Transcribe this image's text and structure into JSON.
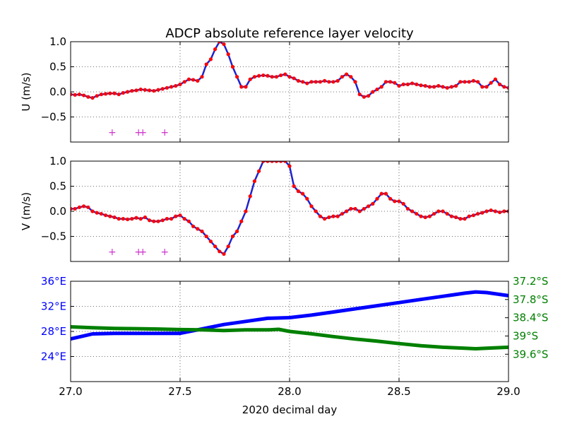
{
  "chart_data": [
    {
      "type": "line",
      "title": "ADCP absolute reference layer velocity",
      "xlabel": "",
      "ylabel": "U (m/s)",
      "xlim": [
        27.0,
        29.0
      ],
      "ylim": [
        -1.0,
        1.0
      ],
      "xticks": [
        27.0,
        27.5,
        28.0,
        28.5,
        29.0
      ],
      "yticks": [
        1.0,
        0.5,
        0.0,
        -0.5
      ],
      "ytick_labels": [
        "1.0",
        "0.5",
        "0.0",
        "−0.5"
      ],
      "grid": true,
      "series": [
        {
          "color": "#ff0000",
          "marker": "dot",
          "x": [
            27.0,
            27.02,
            27.04,
            27.06,
            27.08,
            27.1,
            27.12,
            27.14,
            27.16,
            27.18,
            27.2,
            27.22,
            27.24,
            27.26,
            27.28,
            27.3,
            27.32,
            27.34,
            27.36,
            27.38,
            27.4,
            27.42,
            27.44,
            27.46,
            27.48,
            27.5,
            27.52,
            27.54,
            27.56,
            27.58,
            27.6,
            27.62,
            27.64,
            27.66,
            27.68,
            27.7,
            27.72,
            27.74,
            27.76,
            27.78,
            27.8,
            27.82,
            27.84,
            27.86,
            27.88,
            27.9,
            27.92,
            27.94,
            27.96,
            27.98,
            28.0,
            28.02,
            28.04,
            28.06,
            28.08,
            28.1,
            28.12,
            28.14,
            28.16,
            28.18,
            28.2,
            28.22,
            28.24,
            28.26,
            28.28,
            28.3,
            28.32,
            28.34,
            28.36,
            28.38,
            28.4,
            28.42,
            28.44,
            28.46,
            28.48,
            28.5,
            28.52,
            28.54,
            28.56,
            28.58,
            28.6,
            28.62,
            28.64,
            28.66,
            28.68,
            28.7,
            28.72,
            28.74,
            28.76,
            28.78,
            28.8,
            28.82,
            28.84,
            28.86,
            28.88,
            28.9,
            28.92,
            28.94,
            28.96,
            28.98,
            29.0
          ],
          "y": [
            -0.05,
            -0.06,
            -0.05,
            -0.07,
            -0.1,
            -0.12,
            -0.08,
            -0.05,
            -0.04,
            -0.03,
            -0.03,
            -0.05,
            -0.02,
            0.0,
            0.02,
            0.03,
            0.05,
            0.04,
            0.03,
            0.02,
            0.04,
            0.06,
            0.08,
            0.1,
            0.12,
            0.15,
            0.2,
            0.25,
            0.24,
            0.22,
            0.3,
            0.55,
            0.65,
            0.85,
            1.0,
            0.95,
            0.75,
            0.5,
            0.3,
            0.1,
            0.1,
            0.25,
            0.3,
            0.32,
            0.33,
            0.32,
            0.3,
            0.3,
            0.33,
            0.35,
            0.3,
            0.27,
            0.22,
            0.2,
            0.17,
            0.2,
            0.2,
            0.2,
            0.22,
            0.2,
            0.2,
            0.22,
            0.3,
            0.35,
            0.3,
            0.2,
            -0.05,
            -0.1,
            -0.08,
            0.0,
            0.05,
            0.1,
            0.2,
            0.2,
            0.18,
            0.12,
            0.15,
            0.15,
            0.17,
            0.15,
            0.13,
            0.12,
            0.1,
            0.1,
            0.12,
            0.1,
            0.08,
            0.1,
            0.12,
            0.2,
            0.2,
            0.2,
            0.22,
            0.2,
            0.1,
            0.1,
            0.18,
            0.25,
            0.15,
            0.1,
            0.08
          ]
        }
      ],
      "markers": {
        "symbol": "+",
        "color": "#cc33cc",
        "x": [
          27.19,
          27.31,
          27.33,
          27.43
        ],
        "y": -0.8
      }
    },
    {
      "type": "line",
      "title": "",
      "xlabel": "",
      "ylabel": "V (m/s)",
      "xlim": [
        27.0,
        29.0
      ],
      "ylim": [
        -1.0,
        1.0
      ],
      "xticks": [
        27.0,
        27.5,
        28.0,
        28.5,
        29.0
      ],
      "yticks": [
        1.0,
        0.5,
        0.0,
        -0.5
      ],
      "ytick_labels": [
        "1.0",
        "0.5",
        "0.0",
        "−0.5"
      ],
      "grid": true,
      "series": [
        {
          "color": "#ff0000",
          "marker": "dot",
          "x": [
            27.0,
            27.02,
            27.04,
            27.06,
            27.08,
            27.1,
            27.12,
            27.14,
            27.16,
            27.18,
            27.2,
            27.22,
            27.24,
            27.26,
            27.28,
            27.3,
            27.32,
            27.34,
            27.36,
            27.38,
            27.4,
            27.42,
            27.44,
            27.46,
            27.48,
            27.5,
            27.52,
            27.54,
            27.56,
            27.58,
            27.6,
            27.62,
            27.64,
            27.66,
            27.68,
            27.7,
            27.72,
            27.74,
            27.76,
            27.78,
            27.8,
            27.82,
            27.84,
            27.86,
            27.88,
            27.9,
            27.92,
            27.94,
            27.96,
            27.98,
            28.0,
            28.02,
            28.04,
            28.06,
            28.08,
            28.1,
            28.12,
            28.14,
            28.16,
            28.18,
            28.2,
            28.22,
            28.24,
            28.26,
            28.28,
            28.3,
            28.32,
            28.34,
            28.36,
            28.38,
            28.4,
            28.42,
            28.44,
            28.46,
            28.48,
            28.5,
            28.52,
            28.54,
            28.56,
            28.58,
            28.6,
            28.62,
            28.64,
            28.66,
            28.68,
            28.7,
            28.72,
            28.74,
            28.76,
            28.78,
            28.8,
            28.82,
            28.84,
            28.86,
            28.88,
            28.9,
            28.92,
            28.94,
            28.96,
            28.98,
            29.0
          ],
          "y": [
            0.05,
            0.05,
            0.08,
            0.1,
            0.08,
            0.0,
            -0.03,
            -0.05,
            -0.08,
            -0.1,
            -0.12,
            -0.15,
            -0.15,
            -0.16,
            -0.15,
            -0.13,
            -0.15,
            -0.12,
            -0.18,
            -0.2,
            -0.2,
            -0.18,
            -0.15,
            -0.15,
            -0.1,
            -0.08,
            -0.15,
            -0.2,
            -0.3,
            -0.35,
            -0.4,
            -0.5,
            -0.6,
            -0.7,
            -0.8,
            -0.85,
            -0.7,
            -0.5,
            -0.4,
            -0.2,
            0.0,
            0.3,
            0.6,
            0.8,
            1.0,
            1.0,
            1.0,
            1.0,
            1.0,
            1.0,
            0.9,
            0.5,
            0.4,
            0.35,
            0.25,
            0.1,
            0.0,
            -0.1,
            -0.15,
            -0.12,
            -0.1,
            -0.1,
            -0.05,
            0.0,
            0.05,
            0.05,
            0.0,
            0.05,
            0.1,
            0.15,
            0.25,
            0.35,
            0.35,
            0.25,
            0.2,
            0.2,
            0.15,
            0.05,
            0.0,
            -0.05,
            -0.1,
            -0.12,
            -0.1,
            -0.05,
            0.0,
            0.0,
            -0.05,
            -0.1,
            -0.12,
            -0.15,
            -0.15,
            -0.1,
            -0.08,
            -0.05,
            -0.03,
            0.0,
            0.02,
            0.0,
            -0.02,
            0.0,
            0.0
          ]
        }
      ],
      "markers": {
        "symbol": "+",
        "color": "#cc33cc",
        "x": [
          27.19,
          27.31,
          27.33,
          27.43
        ],
        "y": -0.8
      }
    },
    {
      "type": "line",
      "title": "",
      "xlabel": "2020 decimal day",
      "ylabel": "",
      "xlim": [
        27.0,
        29.0
      ],
      "xticks": [
        27.0,
        27.5,
        28.0,
        28.5,
        29.0
      ],
      "xtick_labels": [
        "27.0",
        "27.5",
        "28.0",
        "28.5",
        "29.0"
      ],
      "grid": true,
      "left_axis": {
        "color": "#0000ff",
        "ylim": [
          20.0,
          36.0
        ],
        "yticks": [
          36,
          32,
          28,
          24
        ],
        "ytick_labels": [
          "36°E",
          "32°E",
          "28°E",
          "24°E"
        ]
      },
      "right_axis": {
        "color": "#008000",
        "ylim": [
          37.2,
          40.5
        ],
        "inverted": true,
        "yticks": [
          37.2,
          37.8,
          38.4,
          39.0,
          39.6
        ],
        "ytick_labels": [
          "37.2°S",
          "37.8°S",
          "38.4°S",
          "39°S",
          "39.6°S"
        ]
      },
      "series": [
        {
          "axis": "left",
          "color": "#0000ff",
          "x": [
            27.0,
            27.05,
            27.1,
            27.2,
            27.3,
            27.4,
            27.5,
            27.6,
            27.7,
            27.8,
            27.9,
            28.0,
            28.1,
            28.2,
            28.3,
            28.4,
            28.5,
            28.6,
            28.7,
            28.8,
            28.85,
            28.9,
            29.0
          ],
          "y": [
            26.8,
            27.2,
            27.6,
            27.7,
            27.7,
            27.7,
            27.7,
            28.4,
            29.1,
            29.6,
            30.1,
            30.2,
            30.6,
            31.1,
            31.6,
            32.1,
            32.6,
            33.1,
            33.6,
            34.1,
            34.3,
            34.2,
            33.7
          ]
        },
        {
          "axis": "right",
          "color": "#008000",
          "x": [
            27.0,
            27.1,
            27.2,
            27.3,
            27.4,
            27.5,
            27.6,
            27.7,
            27.8,
            27.9,
            27.95,
            28.0,
            28.1,
            28.2,
            28.3,
            28.4,
            28.5,
            28.6,
            28.7,
            28.8,
            28.85,
            28.9,
            29.0
          ],
          "y": [
            38.7,
            38.73,
            38.75,
            38.76,
            38.77,
            38.79,
            38.8,
            38.82,
            38.8,
            38.8,
            38.78,
            38.85,
            38.93,
            39.02,
            39.1,
            39.17,
            39.25,
            39.32,
            39.37,
            39.4,
            39.42,
            39.4,
            39.37
          ]
        }
      ]
    }
  ]
}
